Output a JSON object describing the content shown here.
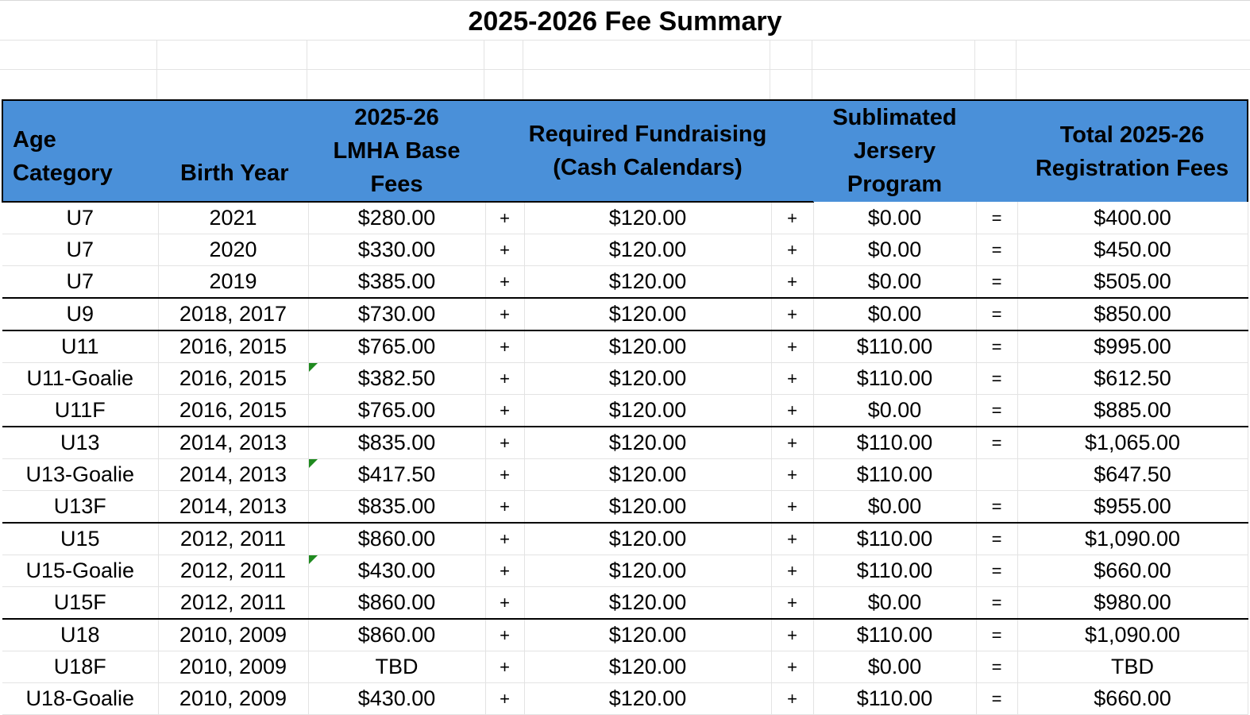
{
  "sheet": {
    "title": "2025-2026 Fee Summary",
    "headers": {
      "age_category": "Age Category",
      "birth_year": "Birth Year",
      "base_fees_line1": "2025-26",
      "base_fees_line2": "LMHA Base",
      "base_fees_line3": "Fees",
      "fundraising_line1": "Required Fundraising",
      "fundraising_line2": "(Cash Calendars)",
      "jersey_line1": "Sublimated",
      "jersey_line2": "Jersery",
      "jersey_line3": "Program",
      "total_line1": "Total 2025-26",
      "total_line2": "Registration Fees"
    },
    "header_color": "#4a90d9",
    "comment_indicator_color": "#1f8a1f",
    "rows": [
      {
        "age": "U7",
        "birth": "2021",
        "base": "$280.00",
        "op1": "+",
        "fund": "$120.00",
        "op2": "+",
        "jersey": "$0.00",
        "eq": "=",
        "total": "$400.00"
      },
      {
        "age": "U7",
        "birth": "2020",
        "base": "$330.00",
        "op1": "+",
        "fund": "$120.00",
        "op2": "+",
        "jersey": "$0.00",
        "eq": "=",
        "total": "$450.00"
      },
      {
        "age": "U7",
        "birth": "2019",
        "base": "$385.00",
        "op1": "+",
        "fund": "$120.00",
        "op2": "+",
        "jersey": "$0.00",
        "eq": "=",
        "total": "$505.00"
      },
      {
        "age": "U9",
        "birth": "2018, 2017",
        "base": "$730.00",
        "op1": "+",
        "fund": "$120.00",
        "op2": "+",
        "jersey": "$0.00",
        "eq": "=",
        "total": "$850.00"
      },
      {
        "age": "U11",
        "birth": "2016, 2015",
        "base": "$765.00",
        "op1": "+",
        "fund": "$120.00",
        "op2": "+",
        "jersey": "$110.00",
        "eq": "=",
        "total": "$995.00"
      },
      {
        "age": "U11-Goalie",
        "birth": "2016, 2015",
        "base": "$382.50",
        "op1": "+",
        "fund": "$120.00",
        "op2": "+",
        "jersey": "$110.00",
        "eq": "=",
        "total": "$612.50"
      },
      {
        "age": "U11F",
        "birth": "2016, 2015",
        "base": "$765.00",
        "op1": "+",
        "fund": "$120.00",
        "op2": "+",
        "jersey": "$0.00",
        "eq": "=",
        "total": "$885.00"
      },
      {
        "age": "U13",
        "birth": "2014, 2013",
        "base": "$835.00",
        "op1": "+",
        "fund": "$120.00",
        "op2": "+",
        "jersey": "$110.00",
        "eq": "=",
        "total": "$1,065.00"
      },
      {
        "age": "U13-Goalie",
        "birth": "2014, 2013",
        "base": "$417.50",
        "op1": "+",
        "fund": "$120.00",
        "op2": "+",
        "jersey": "$110.00",
        "eq": "",
        "total": "$647.50"
      },
      {
        "age": "U13F",
        "birth": "2014, 2013",
        "base": "$835.00",
        "op1": "+",
        "fund": "$120.00",
        "op2": "+",
        "jersey": "$0.00",
        "eq": "=",
        "total": "$955.00"
      },
      {
        "age": "U15",
        "birth": "2012, 2011",
        "base": "$860.00",
        "op1": "+",
        "fund": "$120.00",
        "op2": "+",
        "jersey": "$110.00",
        "eq": "=",
        "total": "$1,090.00"
      },
      {
        "age": "U15-Goalie",
        "birth": "2012, 2011",
        "base": "$430.00",
        "op1": "+",
        "fund": "$120.00",
        "op2": "+",
        "jersey": "$110.00",
        "eq": "=",
        "total": "$660.00"
      },
      {
        "age": "U15F",
        "birth": "2012, 2011",
        "base": "$860.00",
        "op1": "+",
        "fund": "$120.00",
        "op2": "+",
        "jersey": "$0.00",
        "eq": "=",
        "total": "$980.00"
      },
      {
        "age": "U18",
        "birth": "2010, 2009",
        "base": "$860.00",
        "op1": "+",
        "fund": "$120.00",
        "op2": "+",
        "jersey": "$110.00",
        "eq": "=",
        "total": "$1,090.00"
      },
      {
        "age": "U18F",
        "birth": "2010, 2009",
        "base": "TBD",
        "op1": "+",
        "fund": "$120.00",
        "op2": "+",
        "jersey": "$0.00",
        "eq": "=",
        "total": "TBD"
      },
      {
        "age": "U18-Goalie",
        "birth": "2010, 2009",
        "base": "$430.00",
        "op1": "+",
        "fund": "$120.00",
        "op2": "+",
        "jersey": "$110.00",
        "eq": "=",
        "total": "$660.00"
      }
    ]
  }
}
